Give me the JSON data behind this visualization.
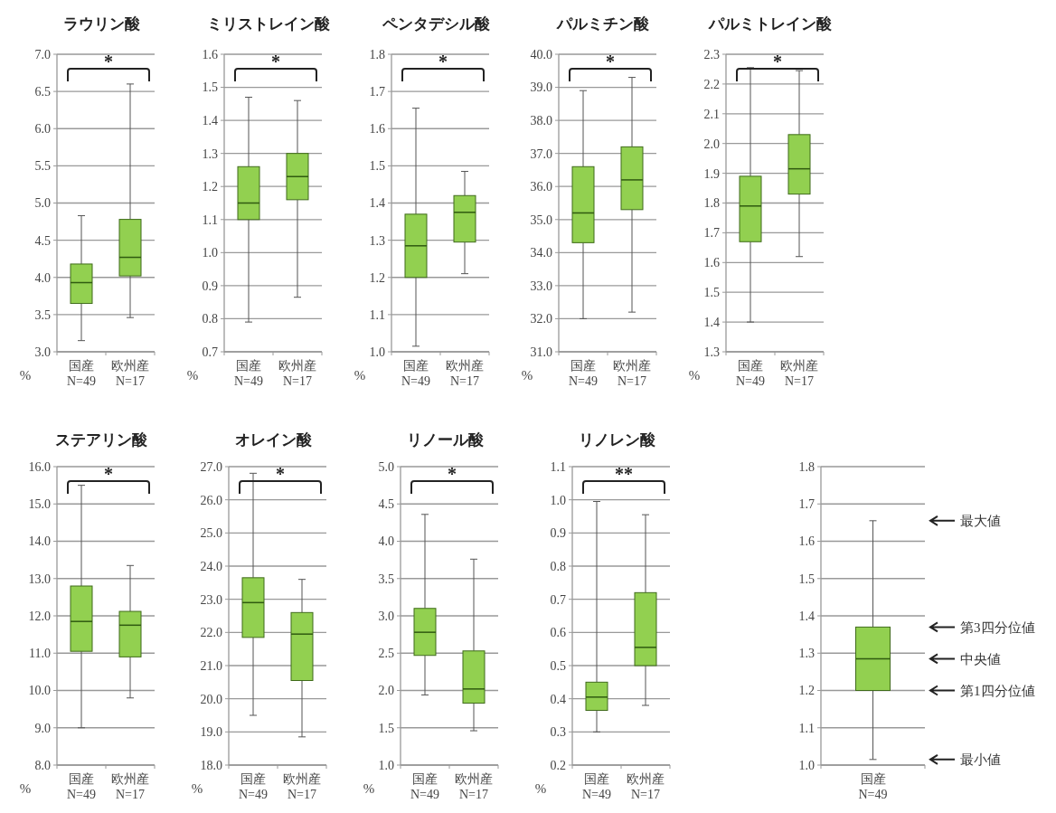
{
  "chart_data": [
    {
      "type": "box",
      "title": "ラウリン酸",
      "ylabel": "%",
      "categories": [
        "国産\nN=49",
        "欧州産\nN=17"
      ],
      "color": "#92d050",
      "grid": "y",
      "ylim": [
        3,
        7
      ],
      "yticks": [
        {
          "value": 3,
          "label": "3.0"
        },
        3.5,
        {
          "value": 4,
          "label": "4.0"
        },
        4.5,
        {
          "value": 5,
          "label": "5.0"
        },
        5.5,
        {
          "value": 6,
          "label": "6.0"
        },
        6.5,
        {
          "value": 7,
          "label": "7.0"
        }
      ],
      "boxes": [
        {
          "low": 3.15,
          "q1": 3.65,
          "median": 3.93,
          "q3": 4.18,
          "high": 4.83
        },
        {
          "low": 3.46,
          "q1": 4.02,
          "median": 4.27,
          "q3": 4.78,
          "high": 6.6
        }
      ],
      "annotations": [
        "*"
      ]
    },
    {
      "type": "box",
      "title": "ミリストレイン酸",
      "ylabel": "%",
      "categories": [
        "国産\nN=49",
        "欧州産\nN=17"
      ],
      "color": "#92d050",
      "grid": "y",
      "ylim": [
        0.7,
        1.6
      ],
      "yticks": [
        0.7,
        0.8,
        0.9,
        {
          "value": 1,
          "label": "1.0"
        },
        1.1,
        1.2,
        1.3,
        1.4,
        1.5,
        1.6
      ],
      "boxes": [
        {
          "low": 0.79,
          "q1": 1.1,
          "median": 1.15,
          "q3": 1.26,
          "high": 1.47
        },
        {
          "low": 0.865,
          "q1": 1.16,
          "median": 1.23,
          "q3": 1.3,
          "high": 1.46
        }
      ],
      "annotations": [
        "*"
      ]
    },
    {
      "type": "box",
      "title": "ペンタデシル酸",
      "ylabel": "%",
      "categories": [
        "国産\nN=49",
        "欧州産\nN=17"
      ],
      "color": "#92d050",
      "grid": "y",
      "ylim": [
        1,
        1.8
      ],
      "yticks": [
        {
          "value": 1,
          "label": "1.0"
        },
        1.1,
        1.2,
        1.3,
        1.4,
        1.5,
        1.6,
        1.7,
        1.8
      ],
      "boxes": [
        {
          "low": 1.015,
          "q1": 1.2,
          "median": 1.285,
          "q3": 1.37,
          "high": 1.655
        },
        {
          "low": 1.21,
          "q1": 1.295,
          "median": 1.375,
          "q3": 1.42,
          "high": 1.485
        }
      ],
      "annotations": [
        "*"
      ]
    },
    {
      "type": "box",
      "title": "パルミチン酸",
      "ylabel": "%",
      "categories": [
        "国産\nN=49",
        "欧州産\nN=17"
      ],
      "color": "#92d050",
      "grid": "y",
      "ylim": [
        31,
        40
      ],
      "yticks": [
        {
          "value": 31,
          "label": "31.0"
        },
        {
          "value": 32,
          "label": "32.0"
        },
        {
          "value": 33,
          "label": "33.0"
        },
        {
          "value": 34,
          "label": "34.0"
        },
        {
          "value": 35,
          "label": "35.0"
        },
        {
          "value": 36,
          "label": "36.0"
        },
        {
          "value": 37,
          "label": "37.0"
        },
        {
          "value": 38,
          "label": "38.0"
        },
        {
          "value": 39,
          "label": "39.0"
        },
        {
          "value": 40,
          "label": "40.0"
        }
      ],
      "boxes": [
        {
          "low": 32,
          "q1": 34.3,
          "median": 35.2,
          "q3": 36.6,
          "high": 38.9
        },
        {
          "low": 32.2,
          "q1": 35.3,
          "median": 36.2,
          "q3": 37.2,
          "high": 39.3
        }
      ],
      "annotations": [
        "*"
      ]
    },
    {
      "type": "box",
      "title": "パルミトレイン酸",
      "ylabel": "%",
      "categories": [
        "国産\nN=49",
        "欧州産\nN=17"
      ],
      "color": "#92d050",
      "grid": "y",
      "ylim": [
        1.3,
        2.3
      ],
      "yticks": [
        1.3,
        1.4,
        1.5,
        1.6,
        1.7,
        1.8,
        1.9,
        {
          "value": 2,
          "label": "2.0"
        },
        2.1,
        2.2,
        2.3
      ],
      "boxes": [
        {
          "low": 1.4,
          "q1": 1.67,
          "median": 1.79,
          "q3": 1.89,
          "high": 2.255
        },
        {
          "low": 1.62,
          "q1": 1.83,
          "median": 1.915,
          "q3": 2.03,
          "high": 2.245
        }
      ],
      "annotations": [
        "*"
      ]
    },
    {
      "type": "box",
      "title": "ステアリン酸",
      "ylabel": "%",
      "categories": [
        "国産\nN=49",
        "欧州産\nN=17"
      ],
      "color": "#92d050",
      "grid": "y",
      "ylim": [
        8,
        16
      ],
      "yticks": [
        {
          "value": 8,
          "label": "8.0"
        },
        {
          "value": 9,
          "label": "9.0"
        },
        {
          "value": 10,
          "label": "10.0"
        },
        {
          "value": 11,
          "label": "11.0"
        },
        {
          "value": 12,
          "label": "12.0"
        },
        {
          "value": 13,
          "label": "13.0"
        },
        {
          "value": 14,
          "label": "14.0"
        },
        {
          "value": 15,
          "label": "15.0"
        },
        {
          "value": 16,
          "label": "16.0"
        }
      ],
      "boxes": [
        {
          "low": 9,
          "q1": 11.05,
          "median": 11.85,
          "q3": 12.8,
          "high": 15.5
        },
        {
          "low": 9.8,
          "q1": 10.9,
          "median": 11.75,
          "q3": 12.12,
          "high": 13.35
        }
      ],
      "annotations": [
        "*"
      ]
    },
    {
      "type": "box",
      "title": "オレイン酸",
      "ylabel": "%",
      "categories": [
        "国産\nN=49",
        "欧州産\nN=17"
      ],
      "color": "#92d050",
      "grid": "y",
      "ylim": [
        18,
        27
      ],
      "yticks": [
        {
          "value": 18,
          "label": "18.0"
        },
        {
          "value": 19,
          "label": "19.0"
        },
        {
          "value": 20,
          "label": "20.0"
        },
        {
          "value": 21,
          "label": "21.0"
        },
        {
          "value": 22,
          "label": "22.0"
        },
        {
          "value": 23,
          "label": "23.0"
        },
        {
          "value": 24,
          "label": "24.0"
        },
        {
          "value": 25,
          "label": "25.0"
        },
        {
          "value": 26,
          "label": "26.0"
        },
        {
          "value": 27,
          "label": "27.0"
        }
      ],
      "boxes": [
        {
          "low": 19.5,
          "q1": 21.85,
          "median": 22.9,
          "q3": 23.65,
          "high": 26.8
        },
        {
          "low": 18.85,
          "q1": 20.55,
          "median": 21.95,
          "q3": 22.6,
          "high": 23.6
        }
      ],
      "annotations": [
        "*"
      ]
    },
    {
      "type": "box",
      "title": "リノール酸",
      "ylabel": "%",
      "categories": [
        "国産\nN=49",
        "欧州産\nN=17"
      ],
      "color": "#92d050",
      "grid": "y",
      "ylim": [
        1,
        5
      ],
      "yticks": [
        {
          "value": 1,
          "label": "1.0"
        },
        1.5,
        {
          "value": 2,
          "label": "2.0"
        },
        2.5,
        {
          "value": 3,
          "label": "3.0"
        },
        3.5,
        {
          "value": 4,
          "label": "4.0"
        },
        4.5,
        {
          "value": 5,
          "label": "5.0"
        }
      ],
      "boxes": [
        {
          "low": 1.94,
          "q1": 2.47,
          "median": 2.78,
          "q3": 3.1,
          "high": 4.36
        },
        {
          "low": 1.46,
          "q1": 1.83,
          "median": 2.02,
          "q3": 2.53,
          "high": 3.76
        }
      ],
      "annotations": [
        "*"
      ]
    },
    {
      "type": "box",
      "title": "リノレン酸",
      "ylabel": "%",
      "categories": [
        "国産\nN=49",
        "欧州産\nN=17"
      ],
      "color": "#92d050",
      "grid": "y",
      "ylim": [
        0.2,
        1.1
      ],
      "yticks": [
        0.2,
        0.3,
        0.4,
        0.5,
        0.6,
        0.7,
        0.8,
        0.9,
        {
          "value": 1,
          "label": "1.0"
        },
        1.1
      ],
      "boxes": [
        {
          "low": 0.3,
          "q1": 0.365,
          "median": 0.405,
          "q3": 0.45,
          "high": 0.995
        },
        {
          "low": 0.38,
          "q1": 0.5,
          "median": 0.555,
          "q3": 0.72,
          "high": 0.955
        }
      ],
      "annotations": [
        "**"
      ]
    },
    {
      "type": "box",
      "categories": [
        "国産\nN=49"
      ],
      "color": "#92d050",
      "grid": "y",
      "ylim": [
        1,
        1.8
      ],
      "yticks": [
        {
          "value": 1,
          "label": "1.0"
        },
        1.1,
        1.2,
        1.3,
        1.4,
        1.5,
        1.6,
        1.7,
        1.8
      ],
      "boxes": [
        {
          "low": 1.015,
          "q1": 1.2,
          "median": 1.285,
          "q3": 1.37,
          "high": 1.655
        }
      ],
      "annotations": [
        "最大値",
        "第3四分位値",
        "中央値",
        "第1四分位値",
        "最小値"
      ]
    }
  ]
}
